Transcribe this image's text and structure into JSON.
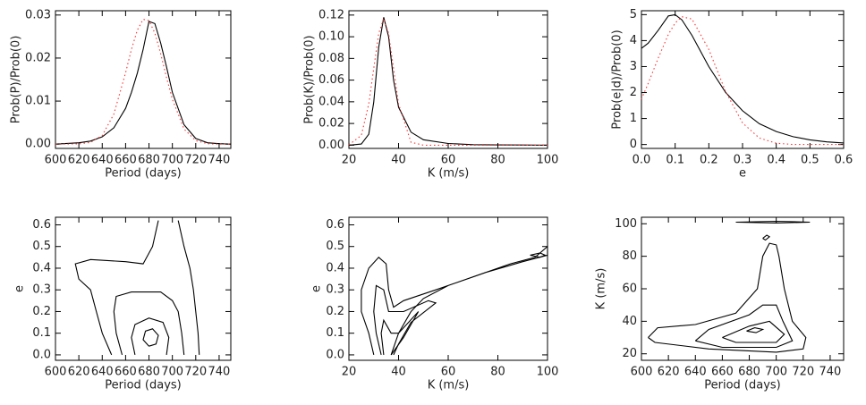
{
  "chart_data": [
    {
      "type": "line",
      "x_label": "Period (days)",
      "y_label": "Prob(P)/Prob(0)",
      "xlim": [
        600,
        750
      ],
      "ylim": [
        -0.001,
        0.031
      ],
      "xticks": [
        600,
        620,
        640,
        660,
        680,
        700,
        720,
        740
      ],
      "yticks": [
        {
          "value": 0,
          "label": "0.00"
        },
        {
          "value": 0.01,
          "label": "0.01"
        },
        {
          "value": 0.02,
          "label": "0.02"
        },
        {
          "value": 0.03,
          "label": "0.03"
        }
      ],
      "x": [
        600,
        620,
        630,
        640,
        650,
        660,
        665,
        670,
        675,
        680,
        685,
        690,
        695,
        700,
        710,
        720,
        730,
        740,
        750
      ],
      "series": [
        {
          "color": "#000000",
          "line_style": "solid",
          "values": [
            0,
            0.0003,
            0.0007,
            0.0017,
            0.0038,
            0.0083,
            0.012,
            0.0165,
            0.022,
            0.0285,
            0.028,
            0.0235,
            0.018,
            0.012,
            0.0045,
            0.0013,
            0.0003,
            0.0001,
            0
          ]
        },
        {
          "color": "#ff3030",
          "line_style": "dotted",
          "values": [
            0,
            5e-05,
            0.0004,
            0.002,
            0.007,
            0.0166,
            0.022,
            0.0265,
            0.029,
            0.0287,
            0.0258,
            0.021,
            0.0155,
            0.0104,
            0.0035,
            0.0008,
            0.0001,
            0,
            0
          ]
        }
      ]
    },
    {
      "type": "line",
      "x_label": "K (m/s)",
      "y_label": "Prob(K)/Prob(0)",
      "xlim": [
        20,
        100
      ],
      "ylim": [
        -0.003,
        0.124
      ],
      "xticks": [
        20,
        40,
        60,
        80,
        100
      ],
      "yticks": [
        {
          "value": 0,
          "label": "0.00"
        },
        {
          "value": 0.02,
          "label": "0.02"
        },
        {
          "value": 0.04,
          "label": "0.04"
        },
        {
          "value": 0.06,
          "label": "0.06"
        },
        {
          "value": 0.08,
          "label": "0.08"
        },
        {
          "value": 0.1,
          "label": "0.10"
        },
        {
          "value": 0.12,
          "label": "0.12"
        }
      ],
      "x": [
        20,
        25,
        28,
        30,
        32,
        34,
        36,
        38,
        40,
        45,
        50,
        60,
        70,
        80,
        90,
        100
      ],
      "series": [
        {
          "color": "#000000",
          "line_style": "solid",
          "values": [
            0,
            0.001,
            0.01,
            0.04,
            0.09,
            0.118,
            0.1,
            0.06,
            0.035,
            0.012,
            0.005,
            0.0015,
            0.0005,
            0.0002,
            0.0001,
            0
          ]
        },
        {
          "color": "#ff3030",
          "line_style": "dotted",
          "values": [
            0.0003,
            0.009,
            0.038,
            0.071,
            0.103,
            0.117,
            0.103,
            0.071,
            0.038,
            0.0027,
            0,
            0,
            0,
            0,
            0,
            0
          ]
        }
      ]
    },
    {
      "type": "line",
      "x_label": "e",
      "y_label": "Prob(e|d)/Prob(0)",
      "xlim": [
        0,
        0.6
      ],
      "ylim": [
        -0.15,
        5.15
      ],
      "xticks": [
        {
          "value": 0,
          "label": "0.0"
        },
        0.1,
        0.2,
        0.3,
        0.4,
        0.5,
        0.6
      ],
      "yticks": [
        0,
        1,
        2,
        3,
        4,
        5
      ],
      "x": [
        0,
        0.02,
        0.05,
        0.08,
        0.1,
        0.12,
        0.15,
        0.2,
        0.25,
        0.3,
        0.35,
        0.4,
        0.45,
        0.5,
        0.55,
        0.6
      ],
      "series": [
        {
          "color": "#000000",
          "line_style": "solid",
          "values": [
            3.7,
            3.9,
            4.4,
            4.95,
            5.0,
            4.8,
            4.2,
            3.0,
            2.0,
            1.3,
            0.8,
            0.5,
            0.3,
            0.18,
            0.1,
            0.06
          ]
        },
        {
          "color": "#ff3030",
          "line_style": "dotted",
          "values": [
            1.75,
            2.35,
            3.33,
            4.24,
            4.68,
            4.92,
            4.83,
            3.66,
            2.03,
            0.83,
            0.25,
            0.05,
            0,
            0,
            0,
            0
          ]
        }
      ]
    },
    {
      "type": "contour",
      "x_label": "Period (days)",
      "y_label": "e",
      "color": "#000000",
      "xlim": [
        600,
        750
      ],
      "ylim": [
        -0.025,
        0.635
      ],
      "xticks": [
        600,
        620,
        640,
        660,
        680,
        700,
        720,
        740
      ],
      "yticks": [
        {
          "value": 0,
          "label": "0.0"
        },
        0.1,
        0.2,
        0.3,
        0.4,
        0.5,
        0.6
      ],
      "series": [
        {
          "x": [
            648,
            640,
            635,
            630,
            620,
            617,
            630,
            660,
            675,
            683,
            688
          ],
          "values": [
            0,
            0.1,
            0.2,
            0.3,
            0.35,
            0.42,
            0.44,
            0.43,
            0.42,
            0.5,
            0.62
          ]
        },
        {
          "x": [
            705,
            710,
            715,
            718,
            720,
            722,
            723
          ],
          "values": [
            0.62,
            0.5,
            0.4,
            0.3,
            0.2,
            0.1,
            0
          ]
        },
        {
          "x": [
            657,
            652,
            650,
            652,
            665,
            690,
            700,
            705,
            708,
            710
          ],
          "values": [
            0,
            0.1,
            0.2,
            0.27,
            0.29,
            0.29,
            0.25,
            0.2,
            0.1,
            0
          ]
        },
        {
          "x": [
            668,
            665,
            668,
            680,
            692,
            697,
            695
          ],
          "values": [
            0,
            0.08,
            0.14,
            0.17,
            0.15,
            0.08,
            0
          ]
        },
        {
          "x": [
            680,
            675,
            677,
            683,
            688,
            686,
            680
          ],
          "values": [
            0.04,
            0.07,
            0.11,
            0.12,
            0.09,
            0.05,
            0.04
          ]
        }
      ]
    },
    {
      "type": "contour",
      "x_label": "K (m/s)",
      "y_label": "e",
      "color": "#000000",
      "xlim": [
        20,
        100
      ],
      "ylim": [
        -0.025,
        0.635
      ],
      "xticks": [
        20,
        40,
        60,
        80,
        100
      ],
      "yticks": [
        {
          "value": 0,
          "label": "0.0"
        },
        0.1,
        0.2,
        0.3,
        0.4,
        0.5,
        0.6
      ],
      "series": [
        {
          "x": [
            30,
            28,
            25,
            25,
            28,
            32,
            35,
            36,
            38,
            42,
            55,
            70,
            85,
            95,
            100,
            100,
            90,
            75,
            60,
            50,
            45,
            40,
            37
          ],
          "values": [
            0,
            0.1,
            0.2,
            0.3,
            0.4,
            0.45,
            0.42,
            0.3,
            0.22,
            0.25,
            0.3,
            0.36,
            0.42,
            0.45,
            0.5,
            0.46,
            0.43,
            0.38,
            0.32,
            0.26,
            0.2,
            0.1,
            0
          ]
        },
        {
          "x": [
            33,
            31,
            30,
            31,
            34,
            36,
            42,
            52,
            55,
            45,
            40,
            38
          ],
          "values": [
            0,
            0.1,
            0.2,
            0.32,
            0.3,
            0.2,
            0.2,
            0.25,
            0.24,
            0.15,
            0.05,
            0
          ]
        },
        {
          "x": [
            34,
            33,
            34,
            37,
            40,
            48,
            42,
            37
          ],
          "values": [
            0,
            0.1,
            0.16,
            0.1,
            0.1,
            0.2,
            0.08,
            0
          ]
        },
        {
          "x": [
            93,
            97,
            99,
            97,
            93
          ],
          "values": [
            0.46,
            0.47,
            0.46,
            0.45,
            0.46
          ]
        }
      ]
    },
    {
      "type": "contour",
      "x_label": "Period (days)",
      "y_label": "K (m/s)",
      "color": "#000000",
      "xlim": [
        600,
        750
      ],
      "ylim": [
        16,
        104
      ],
      "xticks": [
        600,
        620,
        640,
        660,
        680,
        700,
        720,
        740
      ],
      "yticks": [
        20,
        40,
        60,
        80,
        100
      ],
      "series": [
        {
          "x": [
            605,
            610,
            650,
            700,
            720,
            722,
            712,
            706,
            702,
            700,
            695,
            690,
            686,
            670,
            640,
            612,
            605
          ],
          "values": [
            30,
            27,
            23,
            21,
            23,
            30,
            40,
            60,
            80,
            87,
            88,
            80,
            60,
            45,
            38,
            36,
            30
          ]
        },
        {
          "x": [
            640,
            660,
            700,
            712,
            705,
            700,
            690,
            680,
            650,
            640
          ],
          "values": [
            28,
            24,
            24,
            28,
            40,
            50,
            50,
            44,
            35,
            28
          ]
        },
        {
          "x": [
            660,
            670,
            700,
            706,
            695,
            680,
            660
          ],
          "values": [
            30,
            27,
            27,
            32,
            40,
            37,
            30
          ]
        },
        {
          "x": [
            678,
            685,
            690,
            684,
            678
          ],
          "values": [
            34,
            33,
            35,
            36,
            34
          ]
        },
        {
          "x": [
            670,
            700,
            725,
            700,
            670
          ],
          "values": [
            101,
            101.5,
            101,
            100.5,
            101
          ]
        },
        {
          "x": [
            690,
            693,
            695,
            692,
            690
          ],
          "values": [
            91,
            93,
            92,
            90,
            91
          ]
        }
      ]
    }
  ]
}
